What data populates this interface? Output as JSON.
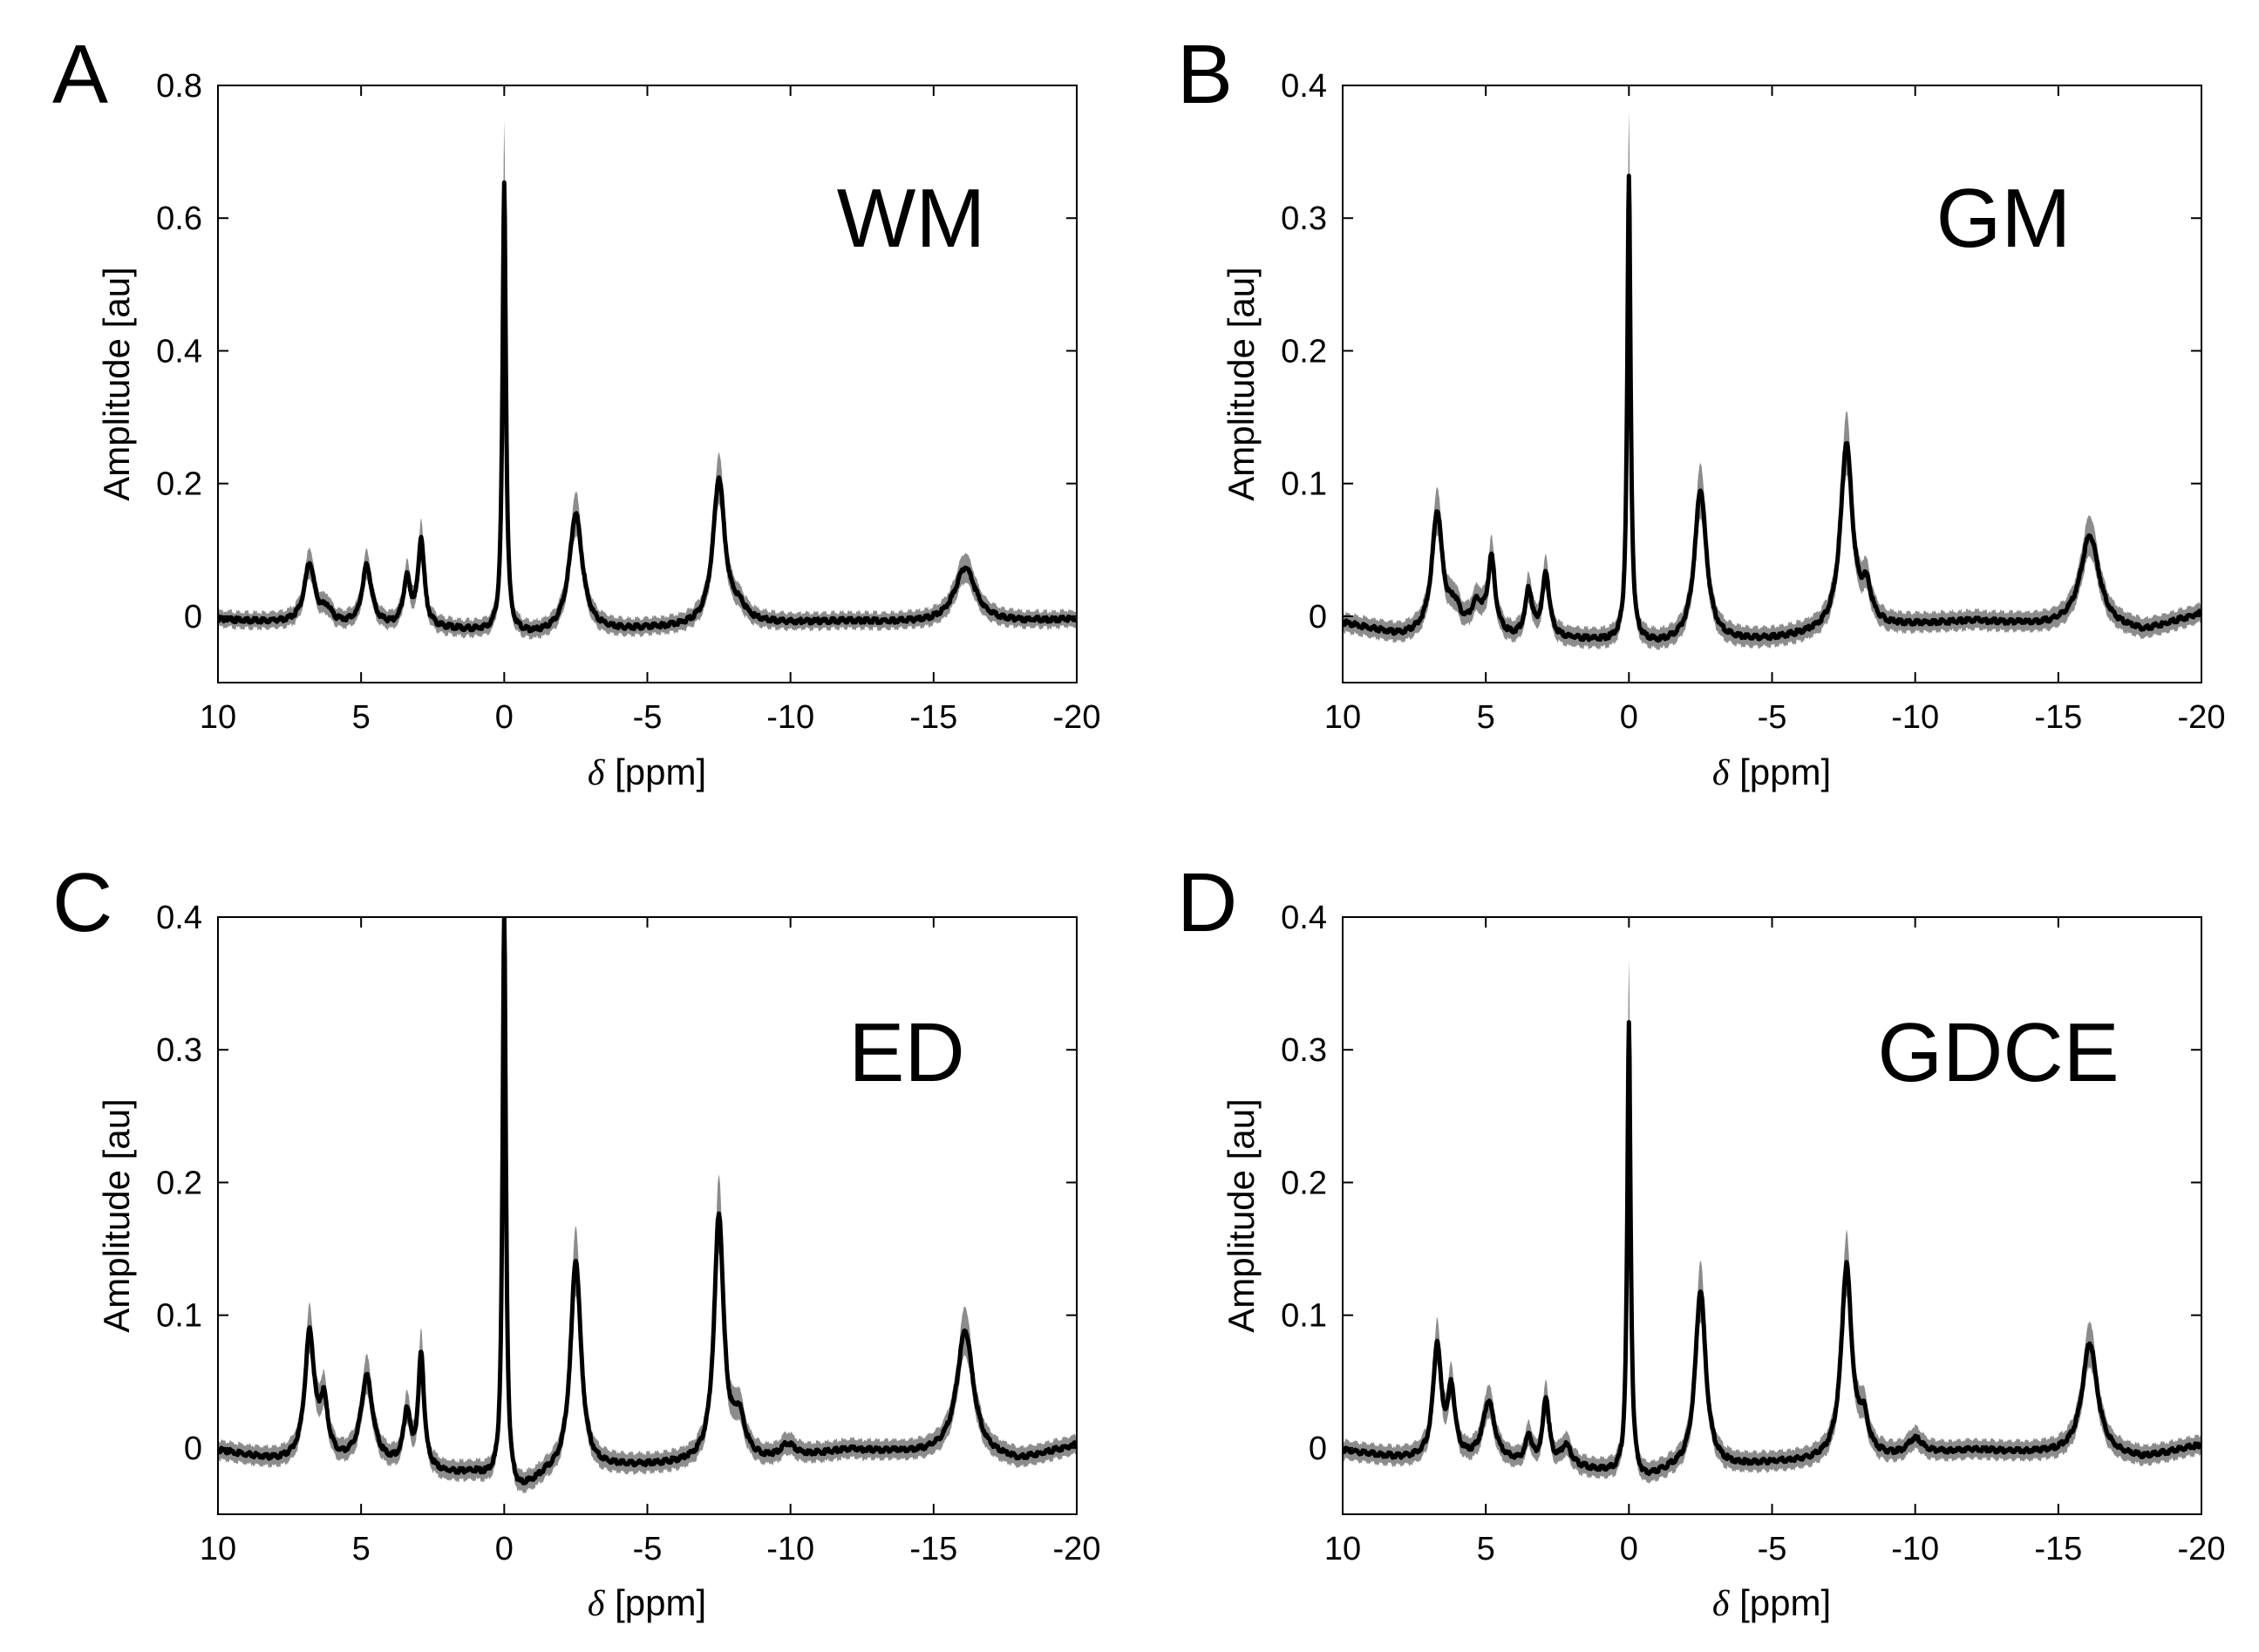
{
  "figure": {
    "colors": {
      "mean_line": "#000000",
      "band": "#8c8c8c",
      "axes": "#000000",
      "background": "#ffffff"
    }
  },
  "chart_data": [
    {
      "type": "line",
      "panel_label": "A",
      "region_label": "WM",
      "xlabel_symbol": "δ",
      "xlabel": "[ppm]",
      "ylabel": "Amplitude [au]",
      "xlim": [
        10,
        -20
      ],
      "ylim": [
        -0.1,
        0.8
      ],
      "xticks": [
        10,
        5,
        0,
        -5,
        -10,
        -15,
        -20
      ],
      "yticks": [
        0,
        0.2,
        0.4,
        0.6,
        0.8
      ],
      "baseline": [
        [
          10,
          -0.005
        ],
        [
          7,
          -0.012
        ],
        [
          5.5,
          -0.015
        ],
        [
          2,
          -0.02
        ],
        [
          0.5,
          -0.025
        ],
        [
          -1,
          -0.03
        ],
        [
          -5,
          -0.02
        ],
        [
          -9,
          -0.012
        ],
        [
          -12,
          -0.008
        ],
        [
          -16,
          -0.012
        ],
        [
          -20,
          -0.005
        ]
      ],
      "peaks": [
        {
          "position": 6.8,
          "amplitude": 0.09,
          "width": 0.22
        },
        {
          "position": 6.2,
          "amplitude": 0.02,
          "width": 0.2
        },
        {
          "position": 4.8,
          "amplitude": 0.09,
          "width": 0.2
        },
        {
          "position": 3.4,
          "amplitude": 0.07,
          "width": 0.15
        },
        {
          "position": 2.9,
          "amplitude": 0.13,
          "width": 0.13
        },
        {
          "position": 0.0,
          "amplitude": 0.68,
          "width": 0.07
        },
        {
          "position": -2.5,
          "amplitude": 0.18,
          "width": 0.28
        },
        {
          "position": -7.5,
          "amplitude": 0.22,
          "width": 0.25
        },
        {
          "position": -8.2,
          "amplitude": 0.02,
          "width": 0.3
        },
        {
          "position": -16.1,
          "amplitude": 0.085,
          "width": 0.45
        }
      ],
      "band_halfwidth": 0.012
    },
    {
      "type": "line",
      "panel_label": "B",
      "region_label": "GM",
      "xlabel_symbol": "δ",
      "xlabel": "[ppm]",
      "ylabel": "Amplitude [au]",
      "xlim": [
        10,
        -20
      ],
      "ylim": [
        -0.05,
        0.4
      ],
      "xticks": [
        10,
        5,
        0,
        -5,
        -10,
        -15,
        -20
      ],
      "yticks": [
        0,
        0.1,
        0.2,
        0.3,
        0.4
      ],
      "baseline": [
        [
          10,
          -0.005
        ],
        [
          8,
          -0.015
        ],
        [
          6,
          -0.012
        ],
        [
          4,
          -0.018
        ],
        [
          2,
          -0.018
        ],
        [
          0.5,
          -0.02
        ],
        [
          -1,
          -0.022
        ],
        [
          -5,
          -0.018
        ],
        [
          -8,
          -0.01
        ],
        [
          -12,
          -0.004
        ],
        [
          -15,
          -0.008
        ],
        [
          -18,
          -0.012
        ],
        [
          -20,
          0.002
        ]
      ],
      "peaks": [
        {
          "position": 6.7,
          "amplitude": 0.09,
          "width": 0.22
        },
        {
          "position": 6.1,
          "amplitude": 0.015,
          "width": 0.22
        },
        {
          "position": 5.3,
          "amplitude": 0.02,
          "width": 0.25
        },
        {
          "position": 4.8,
          "amplitude": 0.055,
          "width": 0.15
        },
        {
          "position": 3.5,
          "amplitude": 0.035,
          "width": 0.15
        },
        {
          "position": 2.9,
          "amplitude": 0.048,
          "width": 0.15
        },
        {
          "position": 0.0,
          "amplitude": 0.35,
          "width": 0.07
        },
        {
          "position": -2.5,
          "amplitude": 0.115,
          "width": 0.25
        },
        {
          "position": -7.6,
          "amplitude": 0.14,
          "width": 0.25
        },
        {
          "position": -8.3,
          "amplitude": 0.025,
          "width": 0.2
        },
        {
          "position": -16.1,
          "amplitude": 0.07,
          "width": 0.4
        }
      ],
      "band_halfwidth": 0.007
    },
    {
      "type": "line",
      "panel_label": "C",
      "region_label": "ED",
      "xlabel_symbol": "δ",
      "xlabel": "[ppm]",
      "ylabel": "Amplitude [au]",
      "xlim": [
        10,
        -20
      ],
      "ylim": [
        -0.05,
        0.4
      ],
      "xticks": [
        10,
        5,
        0,
        -5,
        -10,
        -15,
        -20
      ],
      "yticks": [
        0,
        0.1,
        0.2,
        0.3,
        0.4
      ],
      "baseline": [
        [
          10,
          -0.002
        ],
        [
          8,
          -0.01
        ],
        [
          5.5,
          -0.012
        ],
        [
          3.5,
          -0.015
        ],
        [
          2,
          -0.02
        ],
        [
          1,
          -0.02
        ],
        [
          0.4,
          -0.025
        ],
        [
          -0.5,
          -0.035
        ],
        [
          -1.5,
          -0.022
        ],
        [
          -4,
          -0.015
        ],
        [
          -7,
          -0.012
        ],
        [
          -9.5,
          -0.01
        ],
        [
          -12,
          -0.002
        ],
        [
          -15,
          -0.005
        ],
        [
          -18,
          -0.01
        ],
        [
          -20,
          0.002
        ]
      ],
      "peaks": [
        {
          "position": 6.8,
          "amplitude": 0.095,
          "width": 0.2
        },
        {
          "position": 6.3,
          "amplitude": 0.04,
          "width": 0.17
        },
        {
          "position": 4.8,
          "amplitude": 0.065,
          "width": 0.25
        },
        {
          "position": 3.4,
          "amplitude": 0.04,
          "width": 0.14
        },
        {
          "position": 2.9,
          "amplitude": 0.085,
          "width": 0.12
        },
        {
          "position": 0.0,
          "amplitude": 0.43,
          "width": 0.07
        },
        {
          "position": -2.5,
          "amplitude": 0.16,
          "width": 0.22
        },
        {
          "position": -7.5,
          "amplitude": 0.185,
          "width": 0.2
        },
        {
          "position": -8.2,
          "amplitude": 0.03,
          "width": 0.25
        },
        {
          "position": -9.9,
          "amplitude": 0.01,
          "width": 0.3
        },
        {
          "position": -16.1,
          "amplitude": 0.095,
          "width": 0.35
        }
      ],
      "band_halfwidth": 0.007
    },
    {
      "type": "line",
      "panel_label": "D",
      "region_label": "GDCE",
      "xlabel_symbol": "δ",
      "xlabel": "[ppm]",
      "ylabel": "Amplitude [au]",
      "xlim": [
        10,
        -20
      ],
      "ylim": [
        -0.05,
        0.4
      ],
      "xticks": [
        10,
        5,
        0,
        -5,
        -10,
        -15,
        -20
      ],
      "yticks": [
        0,
        0.1,
        0.2,
        0.3,
        0.4
      ],
      "baseline": [
        [
          10,
          -0.002
        ],
        [
          8,
          -0.008
        ],
        [
          6,
          -0.01
        ],
        [
          4,
          -0.012
        ],
        [
          2,
          -0.015
        ],
        [
          0.5,
          -0.02
        ],
        [
          -0.5,
          -0.025
        ],
        [
          -1.5,
          -0.018
        ],
        [
          -5,
          -0.012
        ],
        [
          -9,
          -0.008
        ],
        [
          -12,
          -0.002
        ],
        [
          -15,
          -0.005
        ],
        [
          -18,
          -0.008
        ],
        [
          -20,
          0.002
        ]
      ],
      "peaks": [
        {
          "position": 6.7,
          "amplitude": 0.085,
          "width": 0.17
        },
        {
          "position": 6.2,
          "amplitude": 0.05,
          "width": 0.15
        },
        {
          "position": 4.9,
          "amplitude": 0.045,
          "width": 0.25
        },
        {
          "position": 3.5,
          "amplitude": 0.02,
          "width": 0.12
        },
        {
          "position": 2.9,
          "amplitude": 0.05,
          "width": 0.13
        },
        {
          "position": 2.2,
          "amplitude": 0.015,
          "width": 0.2
        },
        {
          "position": 0.0,
          "amplitude": 0.34,
          "width": 0.07
        },
        {
          "position": -2.5,
          "amplitude": 0.135,
          "width": 0.22
        },
        {
          "position": -7.6,
          "amplitude": 0.145,
          "width": 0.22
        },
        {
          "position": -8.2,
          "amplitude": 0.025,
          "width": 0.2
        },
        {
          "position": -10.0,
          "amplitude": 0.012,
          "width": 0.3
        },
        {
          "position": -16.1,
          "amplitude": 0.085,
          "width": 0.32
        }
      ],
      "band_halfwidth": 0.007
    }
  ]
}
